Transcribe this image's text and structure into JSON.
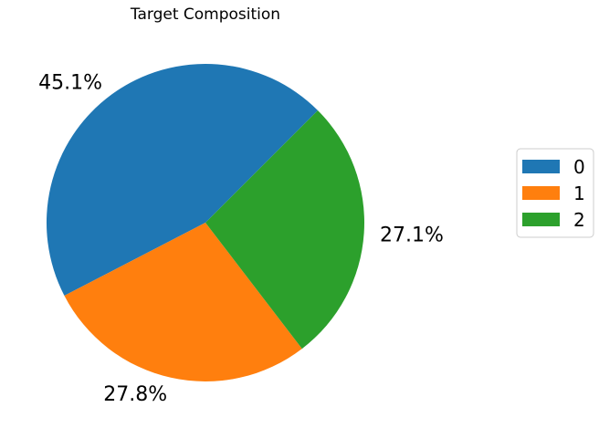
{
  "chart_data": {
    "type": "pie",
    "title": "Target Composition",
    "categories": [
      "0",
      "1",
      "2"
    ],
    "values": [
      45.1,
      27.8,
      27.1
    ],
    "value_labels": [
      "45.1%",
      "27.8%",
      "27.1%"
    ],
    "colors": [
      "#1f77b4",
      "#ff7f0e",
      "#2ca02c"
    ],
    "start_angle_deg": 45,
    "direction": "counterclockwise",
    "legend": {
      "placement": "right",
      "entries": [
        "0",
        "1",
        "2"
      ]
    }
  }
}
